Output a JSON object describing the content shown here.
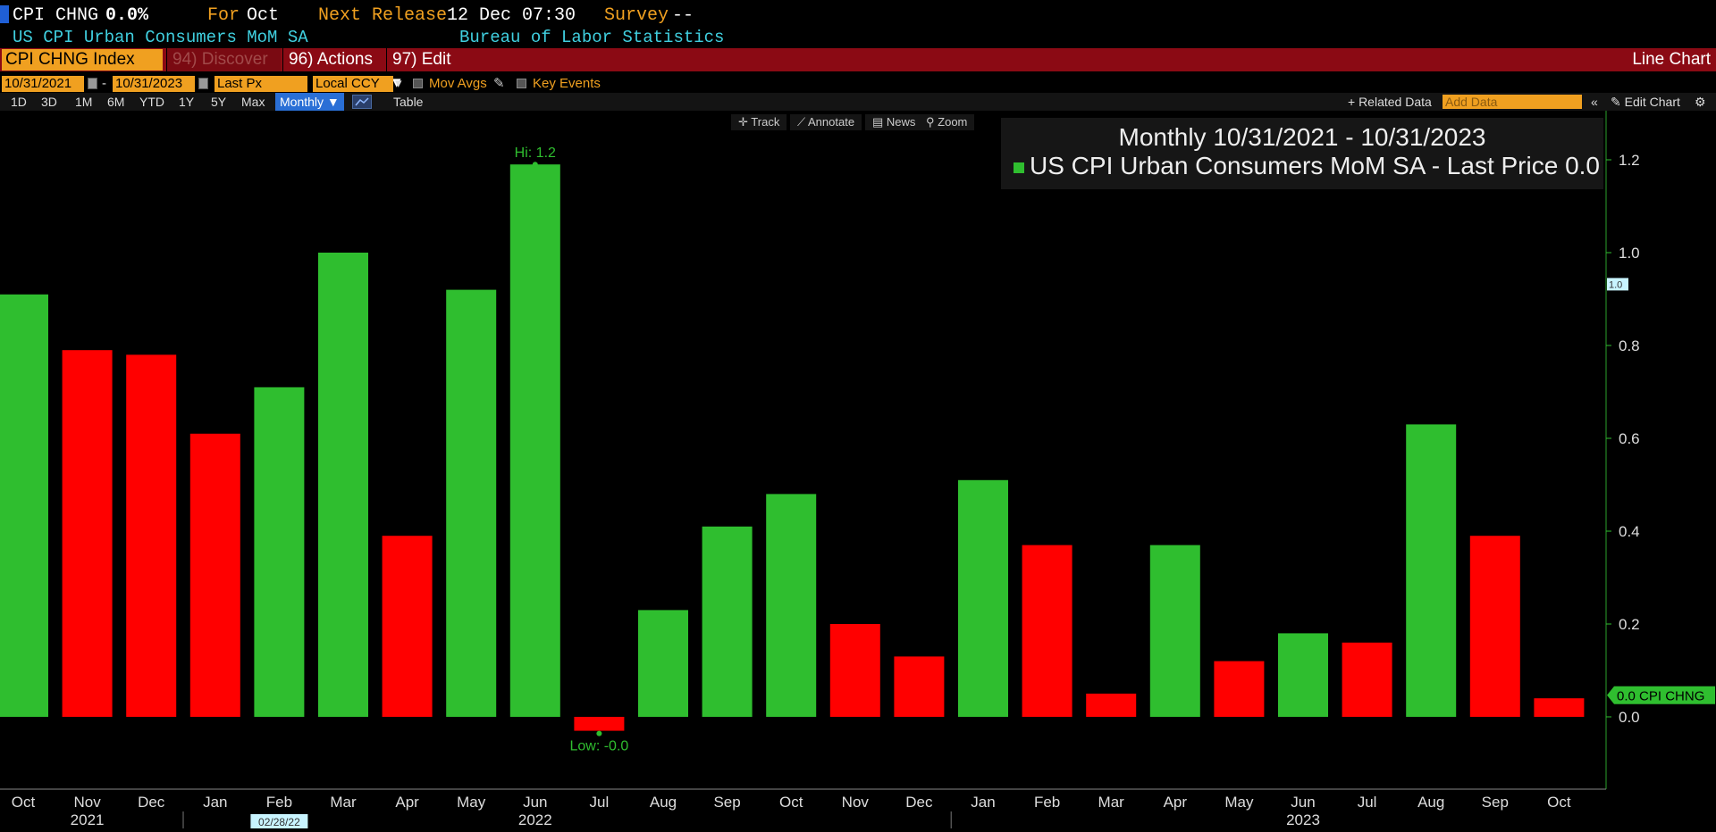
{
  "header": {
    "ticker": "CPI CHNG",
    "value": "0.0%",
    "for_label": "For",
    "for_value": "Oct",
    "next_release_label": "Next Release",
    "next_release_value": "12 Dec 07:30",
    "survey_label": "Survey",
    "survey_value": "--",
    "name": "US CPI Urban Consumers MoM SA",
    "source": "Bureau of Labor Statistics"
  },
  "menubar": {
    "ticker_field": "CPI CHNG Index",
    "discover": "94) Discover",
    "actions": "96) Actions",
    "edit": "97) Edit",
    "chart_type": "Line Chart"
  },
  "options": {
    "start_date": "10/31/2021",
    "end_date": "10/31/2023",
    "field": "Last Px",
    "currency": "Local CCY",
    "mov_avgs": "Mov Avgs",
    "key_events": "Key Events"
  },
  "periods": {
    "items": [
      "1D",
      "3D",
      "1M",
      "6M",
      "YTD",
      "1Y",
      "5Y",
      "Max"
    ],
    "selected": "Monthly",
    "table": "Table",
    "related_data": "+ Related Data",
    "add_data_placeholder": "Add Data",
    "edit_chart": "Edit Chart"
  },
  "tools": {
    "track": "Track",
    "annotate": "Annotate",
    "news": "News",
    "zoom": "Zoom"
  },
  "legend": {
    "title": "Monthly 10/31/2021 - 10/31/2023",
    "series_label": "US CPI Urban Consumers MoM SA - Last Price",
    "series_value": "0.0"
  },
  "colors": {
    "up": "#2fbe2f",
    "down": "#ff0000",
    "orange": "#f0a020",
    "cyan": "#40d0e0",
    "menubar": "#8b0a14"
  },
  "chart_data": {
    "type": "bar",
    "categories": [
      "Oct",
      "Nov",
      "Dec",
      "Jan",
      "Feb",
      "Mar",
      "Apr",
      "May",
      "Jun",
      "Jul",
      "Aug",
      "Sep",
      "Oct",
      "Nov",
      "Dec",
      "Jan",
      "Feb",
      "Mar",
      "Apr",
      "May",
      "Jun",
      "Jul",
      "Aug",
      "Sep",
      "Oct"
    ],
    "years": [
      {
        "label": "2021",
        "index": 1
      },
      {
        "label": "2022",
        "index": 8
      },
      {
        "label": "2023",
        "index": 20
      }
    ],
    "values": [
      0.91,
      0.79,
      0.78,
      0.61,
      0.71,
      1.0,
      0.39,
      0.92,
      1.19,
      -0.03,
      0.23,
      0.41,
      0.48,
      0.2,
      0.13,
      0.51,
      0.37,
      0.05,
      0.37,
      0.12,
      0.18,
      0.16,
      0.63,
      0.39,
      0.04
    ],
    "direction": [
      "up",
      "down",
      "down",
      "down",
      "up",
      "up",
      "down",
      "up",
      "up",
      "down",
      "up",
      "up",
      "up",
      "down",
      "down",
      "up",
      "down",
      "down",
      "up",
      "down",
      "up",
      "down",
      "up",
      "down",
      "down"
    ],
    "yticks": [
      1.2,
      1.0,
      0.8,
      0.6,
      0.4,
      0.2,
      0.0
    ],
    "ylim": [
      -0.15,
      1.3
    ],
    "hi_label": "Hi: 1.2",
    "low_label": "Low: -0.0",
    "last_label": "0.0 CPI CHNG",
    "current_marker": "1.0",
    "date_marker": "02/28/22"
  }
}
